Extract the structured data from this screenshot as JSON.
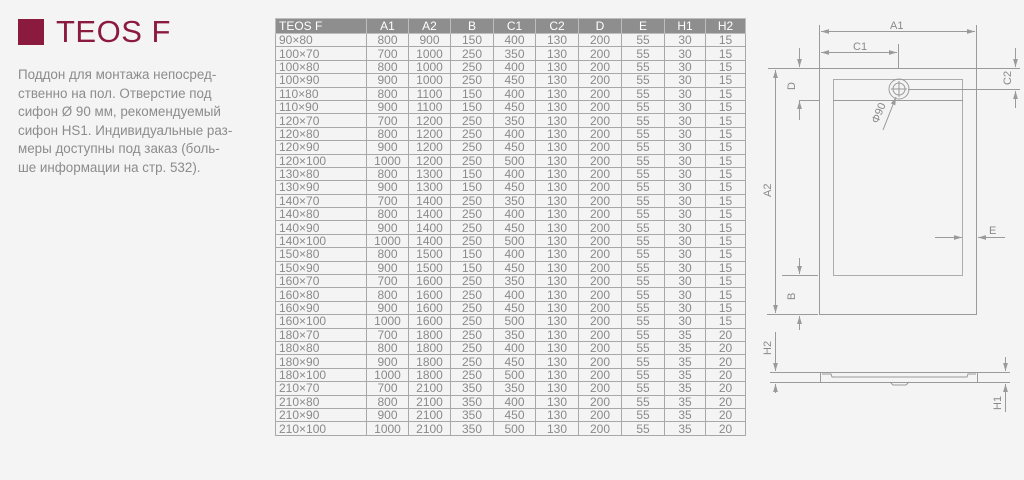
{
  "header": {
    "title": "TEOS F",
    "accent_color": "#8b1a3f"
  },
  "description": "Поддон для монтажа непосред-ственно на пол. Отверстие под сифон Ø 90 мм, рекомендуемый сифон HS1. Индивидуальные раз-меры доступны под заказ (боль-ше информации на стр. 532).",
  "description_lines": [
    "Поддон для монтажа непосред-",
    "ственно на пол. Отверстие под",
    "сифон Ø 90 мм, рекомендуемый",
    "сифон HS1. Индивидуальные раз-",
    "меры доступны под заказ (боль-",
    "ше информации на стр. 532)."
  ],
  "table": {
    "columns": [
      "TEOS F",
      "A1",
      "A2",
      "B",
      "C1",
      "C2",
      "D",
      "E",
      "H1",
      "H2"
    ],
    "rows": [
      [
        "90×80",
        "800",
        "900",
        "150",
        "400",
        "130",
        "200",
        "55",
        "30",
        "15"
      ],
      [
        "100×70",
        "700",
        "1000",
        "250",
        "350",
        "130",
        "200",
        "55",
        "30",
        "15"
      ],
      [
        "100×80",
        "800",
        "1000",
        "250",
        "400",
        "130",
        "200",
        "55",
        "30",
        "15"
      ],
      [
        "100×90",
        "900",
        "1000",
        "250",
        "450",
        "130",
        "200",
        "55",
        "30",
        "15"
      ],
      [
        "110×80",
        "800",
        "1100",
        "150",
        "400",
        "130",
        "200",
        "55",
        "30",
        "15"
      ],
      [
        "110×90",
        "900",
        "1100",
        "150",
        "450",
        "130",
        "200",
        "55",
        "30",
        "15"
      ],
      [
        "120×70",
        "700",
        "1200",
        "250",
        "350",
        "130",
        "200",
        "55",
        "30",
        "15"
      ],
      [
        "120×80",
        "800",
        "1200",
        "250",
        "400",
        "130",
        "200",
        "55",
        "30",
        "15"
      ],
      [
        "120×90",
        "900",
        "1200",
        "250",
        "450",
        "130",
        "200",
        "55",
        "30",
        "15"
      ],
      [
        "120×100",
        "1000",
        "1200",
        "250",
        "500",
        "130",
        "200",
        "55",
        "30",
        "15"
      ],
      [
        "130×80",
        "800",
        "1300",
        "150",
        "400",
        "130",
        "200",
        "55",
        "30",
        "15"
      ],
      [
        "130×90",
        "900",
        "1300",
        "150",
        "450",
        "130",
        "200",
        "55",
        "30",
        "15"
      ],
      [
        "140×70",
        "700",
        "1400",
        "250",
        "350",
        "130",
        "200",
        "55",
        "30",
        "15"
      ],
      [
        "140×80",
        "800",
        "1400",
        "250",
        "400",
        "130",
        "200",
        "55",
        "30",
        "15"
      ],
      [
        "140×90",
        "900",
        "1400",
        "250",
        "450",
        "130",
        "200",
        "55",
        "30",
        "15"
      ],
      [
        "140×100",
        "1000",
        "1400",
        "250",
        "500",
        "130",
        "200",
        "55",
        "30",
        "15"
      ],
      [
        "150×80",
        "800",
        "1500",
        "150",
        "400",
        "130",
        "200",
        "55",
        "30",
        "15"
      ],
      [
        "150×90",
        "900",
        "1500",
        "150",
        "450",
        "130",
        "200",
        "55",
        "30",
        "15"
      ],
      [
        "160×70",
        "700",
        "1600",
        "250",
        "350",
        "130",
        "200",
        "55",
        "30",
        "15"
      ],
      [
        "160×80",
        "800",
        "1600",
        "250",
        "400",
        "130",
        "200",
        "55",
        "30",
        "15"
      ],
      [
        "160×90",
        "900",
        "1600",
        "250",
        "450",
        "130",
        "200",
        "55",
        "30",
        "15"
      ],
      [
        "160×100",
        "1000",
        "1600",
        "250",
        "500",
        "130",
        "200",
        "55",
        "30",
        "15"
      ],
      [
        "180×70",
        "700",
        "1800",
        "250",
        "350",
        "130",
        "200",
        "55",
        "35",
        "20"
      ],
      [
        "180×80",
        "800",
        "1800",
        "250",
        "400",
        "130",
        "200",
        "55",
        "35",
        "20"
      ],
      [
        "180×90",
        "900",
        "1800",
        "250",
        "450",
        "130",
        "200",
        "55",
        "35",
        "20"
      ],
      [
        "180×100",
        "1000",
        "1800",
        "250",
        "500",
        "130",
        "200",
        "55",
        "35",
        "20"
      ],
      [
        "210×70",
        "700",
        "2100",
        "350",
        "350",
        "130",
        "200",
        "55",
        "35",
        "20"
      ],
      [
        "210×80",
        "800",
        "2100",
        "350",
        "400",
        "130",
        "200",
        "55",
        "35",
        "20"
      ],
      [
        "210×90",
        "900",
        "2100",
        "350",
        "450",
        "130",
        "200",
        "55",
        "35",
        "20"
      ],
      [
        "210×100",
        "1000",
        "2100",
        "350",
        "500",
        "130",
        "200",
        "55",
        "35",
        "20"
      ]
    ]
  },
  "diagram": {
    "labels": {
      "a1": "A1",
      "c1": "C1",
      "d": "D",
      "c2": "C2",
      "a2": "A2",
      "e": "E",
      "b": "B",
      "h2": "H2",
      "h1": "H1",
      "drain": "Φ90"
    }
  }
}
